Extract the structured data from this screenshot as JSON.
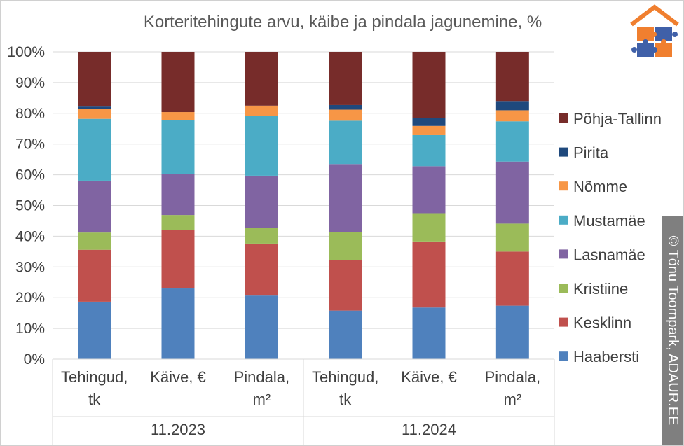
{
  "chart_data": {
    "type": "bar",
    "stacked": true,
    "title": "Korteritehingute arvu, käibe ja pindala jagunemine, %",
    "categories": [
      {
        "label": [
          "Tehingud,",
          "tk"
        ],
        "group": "11.2023"
      },
      {
        "label": [
          "Käive, €"
        ],
        "group": "11.2023"
      },
      {
        "label": [
          "Pindala,",
          "m²"
        ],
        "group": "11.2023"
      },
      {
        "label": [
          "Tehingud,",
          "tk"
        ],
        "group": "11.2024"
      },
      {
        "label": [
          "Käive, €"
        ],
        "group": "11.2024"
      },
      {
        "label": [
          "Pindala,",
          "m²"
        ],
        "group": "11.2024"
      }
    ],
    "groups": [
      "11.2023",
      "11.2024"
    ],
    "ylim": [
      0,
      100
    ],
    "yticks": [
      "0%",
      "10%",
      "20%",
      "30%",
      "40%",
      "50%",
      "60%",
      "70%",
      "80%",
      "90%",
      "100%"
    ],
    "grid": true,
    "legend_position": "right",
    "series": [
      {
        "name": "Haabersti",
        "color": "#4f81bd",
        "values": [
          18.7,
          23.0,
          20.7,
          15.8,
          16.8,
          17.4
        ]
      },
      {
        "name": "Kesklinn",
        "color": "#c0504d",
        "values": [
          16.9,
          19.0,
          16.9,
          16.4,
          21.5,
          17.6
        ]
      },
      {
        "name": "Kristiine",
        "color": "#9bbb59",
        "values": [
          5.6,
          4.9,
          5.0,
          9.2,
          9.2,
          9.1
        ]
      },
      {
        "name": "Lasnamäe",
        "color": "#8064a2",
        "values": [
          16.9,
          13.3,
          17.1,
          22.1,
          15.3,
          20.2
        ]
      },
      {
        "name": "Mustamäe",
        "color": "#4bacc6",
        "values": [
          20.1,
          17.6,
          19.5,
          14.1,
          10.1,
          13.1
        ]
      },
      {
        "name": "Nõmme",
        "color": "#f79646",
        "values": [
          3.3,
          2.6,
          3.3,
          3.6,
          3.0,
          3.6
        ]
      },
      {
        "name": "Pirita",
        "color": "#1f497d",
        "values": [
          0.7,
          0.0,
          0.0,
          1.5,
          2.5,
          3.0
        ]
      },
      {
        "name": "Põhja-Tallinn",
        "color": "#772c2a",
        "values": [
          17.8,
          19.6,
          17.5,
          17.3,
          21.6,
          16.0
        ]
      }
    ]
  },
  "credit": {
    "symbol": "©",
    "text": "Tõnu Toompark, ADAUR.EE"
  }
}
